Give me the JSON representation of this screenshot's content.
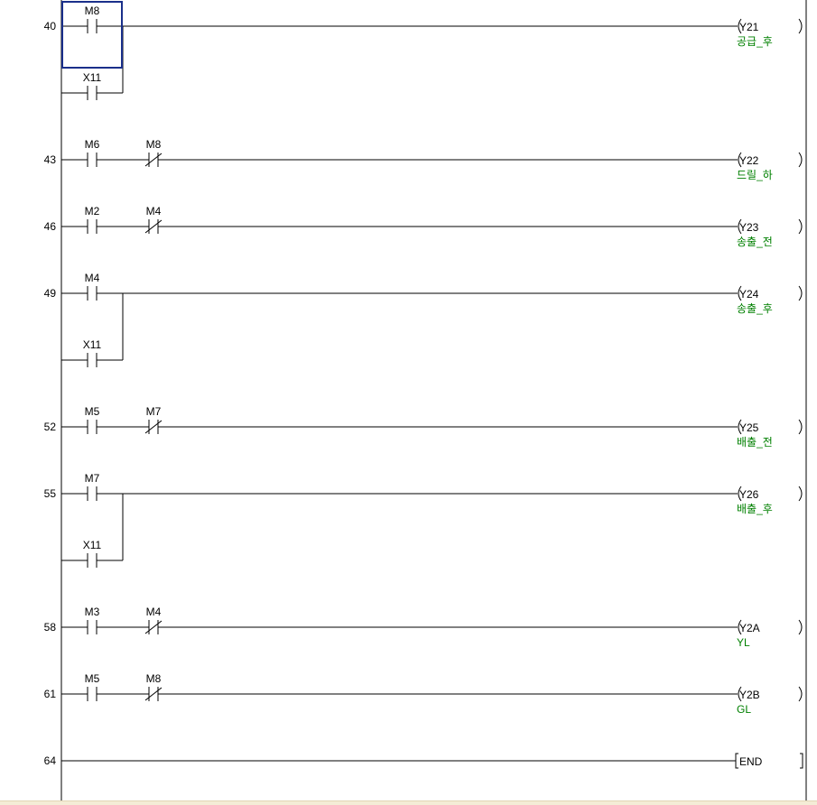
{
  "editor": {
    "colors": {
      "background": "#ffffff",
      "line": "#000000",
      "text": "#000000",
      "comment": "#008000",
      "cursor": "#1a2f8a"
    },
    "cursor": {
      "rung": 0,
      "branch": 0,
      "column": 0
    },
    "rungs": [
      {
        "step": "40",
        "branches": [
          [
            {
              "type": "contact-no",
              "device": "M8"
            }
          ],
          [
            {
              "type": "contact-no",
              "device": "X11"
            }
          ]
        ],
        "output": {
          "type": "coil",
          "device": "Y21",
          "comment": "공급_후"
        }
      },
      {
        "step": "43",
        "branches": [
          [
            {
              "type": "contact-no",
              "device": "M6"
            },
            {
              "type": "contact-nc",
              "device": "M8"
            }
          ]
        ],
        "output": {
          "type": "coil",
          "device": "Y22",
          "comment": "드릴_하"
        }
      },
      {
        "step": "46",
        "branches": [
          [
            {
              "type": "contact-no",
              "device": "M2"
            },
            {
              "type": "contact-nc",
              "device": "M4"
            }
          ]
        ],
        "output": {
          "type": "coil",
          "device": "Y23",
          "comment": "송출_전"
        }
      },
      {
        "step": "49",
        "branches": [
          [
            {
              "type": "contact-no",
              "device": "M4"
            }
          ],
          [
            {
              "type": "contact-no",
              "device": "X11"
            }
          ]
        ],
        "output": {
          "type": "coil",
          "device": "Y24",
          "comment": "송출_후"
        }
      },
      {
        "step": "52",
        "branches": [
          [
            {
              "type": "contact-no",
              "device": "M5"
            },
            {
              "type": "contact-nc",
              "device": "M7"
            }
          ]
        ],
        "output": {
          "type": "coil",
          "device": "Y25",
          "comment": "배출_전"
        }
      },
      {
        "step": "55",
        "branches": [
          [
            {
              "type": "contact-no",
              "device": "M7"
            }
          ],
          [
            {
              "type": "contact-no",
              "device": "X11"
            }
          ]
        ],
        "output": {
          "type": "coil",
          "device": "Y26",
          "comment": "배출_후"
        }
      },
      {
        "step": "58",
        "branches": [
          [
            {
              "type": "contact-no",
              "device": "M3"
            },
            {
              "type": "contact-nc",
              "device": "M4"
            }
          ]
        ],
        "output": {
          "type": "coil",
          "device": "Y2A",
          "comment": "YL"
        }
      },
      {
        "step": "61",
        "branches": [
          [
            {
              "type": "contact-no",
              "device": "M5"
            },
            {
              "type": "contact-nc",
              "device": "M8"
            }
          ]
        ],
        "output": {
          "type": "coil",
          "device": "Y2B",
          "comment": "GL"
        }
      },
      {
        "step": "64",
        "branches": [
          []
        ],
        "output": {
          "type": "end",
          "device": "END",
          "comment": ""
        }
      }
    ]
  }
}
